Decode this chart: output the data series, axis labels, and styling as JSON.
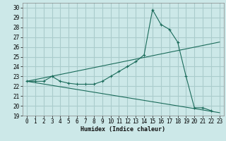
{
  "title": "",
  "xlabel": "Humidex (Indice chaleur)",
  "bg_color": "#cce8e8",
  "grid_color": "#aacccc",
  "line_color": "#1a6b5a",
  "xlim": [
    -0.5,
    23.5
  ],
  "ylim": [
    19,
    30.5
  ],
  "xticks": [
    0,
    1,
    2,
    3,
    4,
    5,
    6,
    7,
    8,
    9,
    10,
    11,
    12,
    13,
    14,
    15,
    16,
    17,
    18,
    19,
    20,
    21,
    22,
    23
  ],
  "yticks": [
    19,
    20,
    21,
    22,
    23,
    24,
    25,
    26,
    27,
    28,
    29,
    30
  ],
  "line1_x": [
    0,
    1,
    2,
    3,
    4,
    5,
    6,
    7,
    8,
    9,
    10,
    11,
    12,
    13,
    14,
    15,
    16,
    17,
    18,
    19,
    20,
    21,
    22
  ],
  "line1_y": [
    22.5,
    22.5,
    22.5,
    23.0,
    22.5,
    22.3,
    22.2,
    22.2,
    22.2,
    22.5,
    23.0,
    23.5,
    24.0,
    24.5,
    25.2,
    29.8,
    28.3,
    27.8,
    26.5,
    23.0,
    19.8,
    19.8,
    19.5
  ],
  "line2_x": [
    0,
    23
  ],
  "line2_y": [
    22.5,
    26.5
  ],
  "line3_x": [
    0,
    23
  ],
  "line3_y": [
    22.5,
    19.3
  ]
}
